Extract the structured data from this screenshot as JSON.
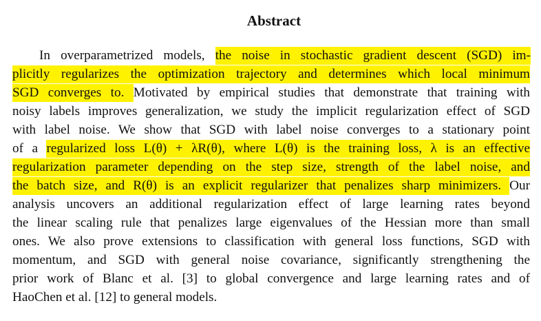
{
  "heading": "Abstract",
  "lines": [
    {
      "pre": "In overparametrized models, ",
      "hl": "the noise in stochastic gradient descent (SGD) im-",
      "post": ""
    },
    {
      "pre": "",
      "hl": "plicitly regularizes the optimization trajectory and determines which local minimum",
      "post": ""
    },
    {
      "pre": "",
      "hl": "SGD converges to. ",
      "post": "Motivated by empirical studies that demonstrate that training with"
    },
    {
      "pre": "noisy labels improves generalization, we study the implicit regularization effect of SGD",
      "hl": "",
      "post": ""
    },
    {
      "pre": "with label noise. We show that SGD with label noise converges to a stationary point",
      "hl": "",
      "post": ""
    },
    {
      "pre": "of a ",
      "hl": "regularized loss L(θ) + λR(θ), where L(θ) is the training loss, λ is an effective",
      "post": ""
    },
    {
      "pre": "",
      "hl": "regularization parameter depending on the step size, strength of the label noise, and",
      "post": ""
    },
    {
      "pre": "",
      "hl": "the batch size, and R(θ) is an explicit regularizer that penalizes sharp minimizers. ",
      "post": "Our"
    },
    {
      "pre": "analysis uncovers an additional regularization effect of large learning rates beyond",
      "hl": "",
      "post": ""
    },
    {
      "pre": "the linear scaling rule that penalizes large eigenvalues of the Hessian more than small",
      "hl": "",
      "post": ""
    },
    {
      "pre": "ones. We also prove extensions to classification with general loss functions, SGD with",
      "hl": "",
      "post": ""
    },
    {
      "pre": "momentum, and SGD with general noise covariance, significantly strengthening the",
      "hl": "",
      "post": ""
    },
    {
      "pre": "prior work of Blanc et al. [3] to global convergence and large learning rates and of",
      "hl": "",
      "post": ""
    },
    {
      "pre": "HaoChen et al. [12] to general models.",
      "hl": "",
      "post": ""
    }
  ],
  "highlight_color": "#fff200"
}
